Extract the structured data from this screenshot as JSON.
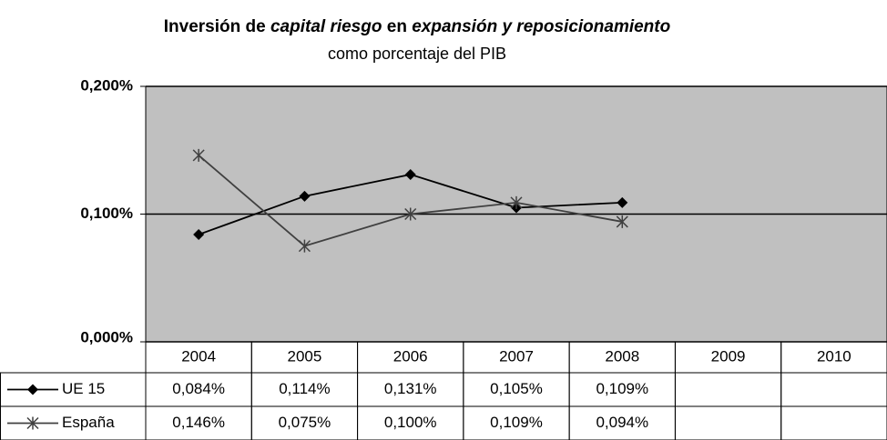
{
  "chart_data": {
    "type": "line",
    "title_parts": [
      {
        "text": "Inversión de ",
        "italic": false
      },
      {
        "text": "capital riesgo",
        "italic": true
      },
      {
        "text": " en ",
        "italic": false
      },
      {
        "text": "expansión y reposicionamiento",
        "italic": true
      }
    ],
    "subtitle": "como porcentaje del PIB",
    "categories": [
      "2004",
      "2005",
      "2006",
      "2007",
      "2008",
      "2009",
      "2010"
    ],
    "series": [
      {
        "name": "UE 15",
        "color": "#000000",
        "marker": "diamond",
        "values": [
          0.084,
          0.114,
          0.131,
          0.105,
          0.109,
          null,
          null
        ],
        "value_labels": [
          "0,084%",
          "0,114%",
          "0,131%",
          "0,105%",
          "0,109%",
          null,
          null
        ]
      },
      {
        "name": "España",
        "color": "#404040",
        "marker": "asterisk",
        "values": [
          0.146,
          0.075,
          0.1,
          0.109,
          0.094,
          null,
          null
        ],
        "value_labels": [
          "0,146%",
          "0,075%",
          "0,100%",
          "0,109%",
          "0,094%",
          null,
          null
        ]
      }
    ],
    "ylim": [
      0,
      0.2
    ],
    "yticks": [
      {
        "value": 0,
        "label": "0,000%"
      },
      {
        "value": 0.1,
        "label": "0,100%"
      },
      {
        "value": 0.2,
        "label": "0,200%"
      }
    ],
    "grid": true,
    "plot_background": "#c0c0c0",
    "data_table": true
  }
}
